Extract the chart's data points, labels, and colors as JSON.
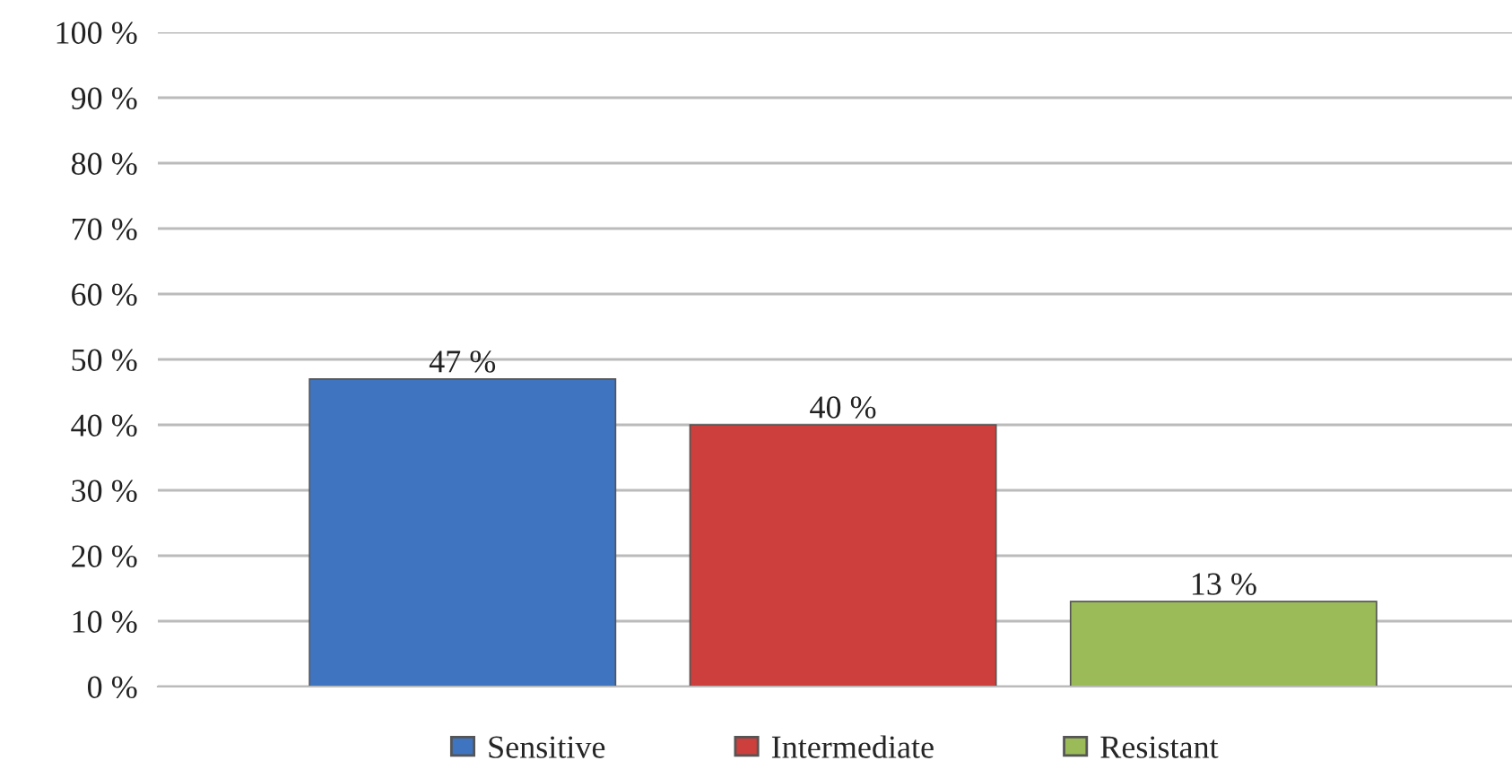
{
  "chart_data": {
    "type": "bar",
    "categories": [
      null
    ],
    "series": [
      {
        "name": "Sensitive",
        "color": "#3f74c0",
        "values": [
          47
        ],
        "value_labels": [
          "47 %"
        ]
      },
      {
        "name": "Intermediate",
        "color": "#cc3f3c",
        "values": [
          40
        ],
        "value_labels": [
          "40 %"
        ]
      },
      {
        "name": "Resistant",
        "color": "#9bbb59",
        "values": [
          13
        ],
        "value_labels": [
          "13 %"
        ]
      }
    ],
    "ylim": [
      0,
      100
    ],
    "yticks": [
      {
        "value": 0,
        "label": "0 %"
      },
      {
        "value": 10,
        "label": "10 %"
      },
      {
        "value": 20,
        "label": "20 %"
      },
      {
        "value": 30,
        "label": "30 %"
      },
      {
        "value": 40,
        "label": "40 %"
      },
      {
        "value": 50,
        "label": "50 %"
      },
      {
        "value": 60,
        "label": "60 %"
      },
      {
        "value": 70,
        "label": "70 %"
      },
      {
        "value": 80,
        "label": "80 %"
      },
      {
        "value": 90,
        "label": "90 %"
      },
      {
        "value": 100,
        "label": "100 %"
      }
    ],
    "grid": "y",
    "legend": "bottom"
  }
}
